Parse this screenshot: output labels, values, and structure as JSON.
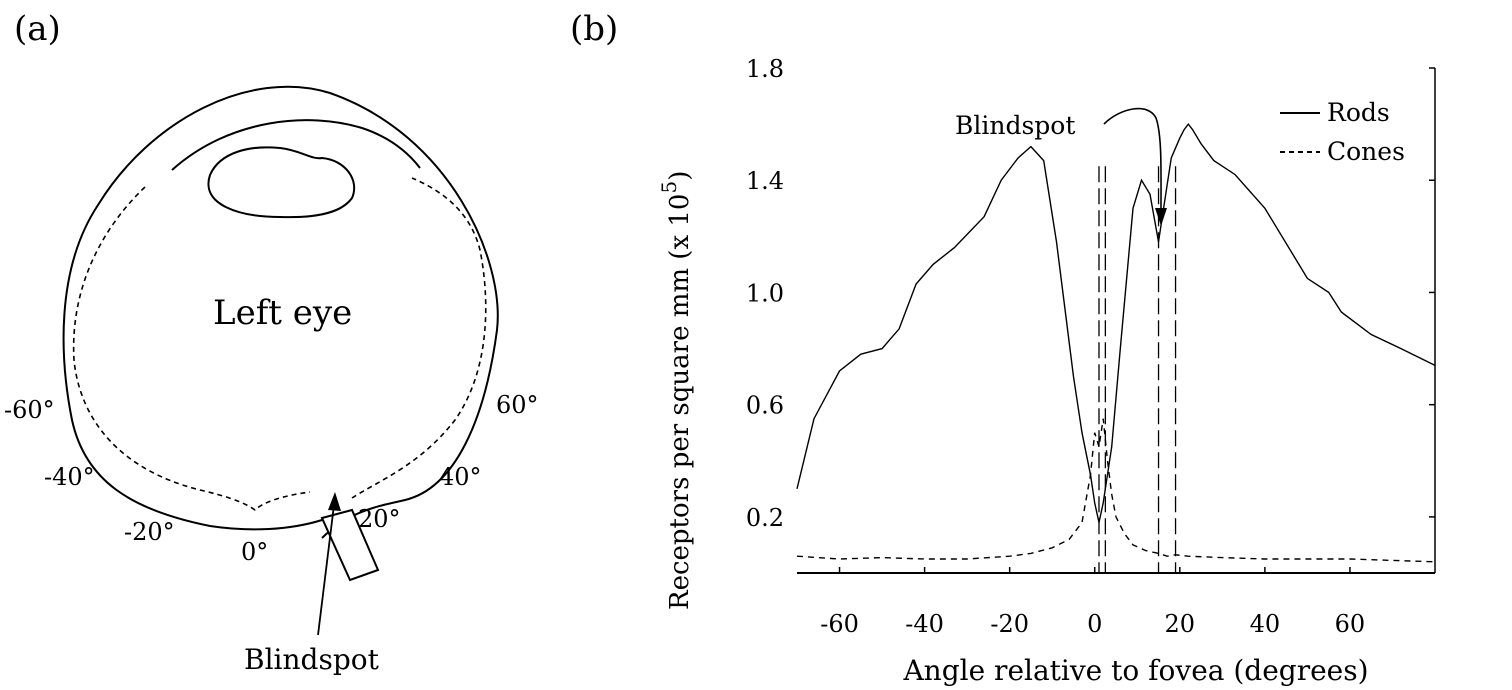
{
  "panel_a": {
    "label": "(a)",
    "eye_label": "Left eye",
    "blindspot_label": "Blindspot",
    "angle_labels": [
      "-60°",
      "-40°",
      "-20°",
      "0°",
      "20°",
      "40°",
      "60°"
    ]
  },
  "panel_b": {
    "label": "(b)",
    "blindspot_label": "Blindspot"
  },
  "chart_data": {
    "type": "line",
    "xlabel": "Angle relative to fovea (degrees)",
    "ylabel": "Receptors per square mm (x 10",
    "ylabel_sup": "5",
    "ylabel_close": ")",
    "xlim": [
      -70,
      80
    ],
    "ylim": [
      0,
      1.8
    ],
    "x_ticks": [
      -60,
      -40,
      -20,
      0,
      20,
      40,
      60
    ],
    "y_ticks": [
      0.2,
      0.6,
      1.0,
      1.4,
      1.8
    ],
    "x_tick_labels": [
      "-60",
      "-40",
      "-20",
      "0",
      "20",
      "40",
      "60"
    ],
    "y_tick_labels": [
      "0.2",
      "0.6",
      "1.0",
      "1.4",
      "1.8"
    ],
    "legend_position": "top-right",
    "series": [
      {
        "name": "Rods",
        "style": "solid",
        "x": [
          -70,
          -66,
          -60,
          -55,
          -50,
          -46,
          -42,
          -38,
          -33,
          -26,
          -22,
          -18,
          -15,
          -12,
          -9,
          -5,
          -3,
          -1,
          0,
          1,
          2,
          4,
          6,
          9,
          11,
          13,
          15,
          17,
          18,
          20,
          21,
          22,
          23,
          25,
          28,
          33,
          40,
          50,
          55,
          58,
          65,
          72,
          80
        ],
        "y": [
          0.3,
          0.55,
          0.72,
          0.78,
          0.8,
          0.87,
          1.03,
          1.1,
          1.16,
          1.27,
          1.4,
          1.48,
          1.52,
          1.47,
          1.18,
          0.7,
          0.5,
          0.35,
          0.25,
          0.18,
          0.25,
          0.45,
          0.8,
          1.3,
          1.4,
          1.35,
          1.18,
          1.38,
          1.48,
          1.55,
          1.58,
          1.6,
          1.58,
          1.53,
          1.47,
          1.42,
          1.3,
          1.05,
          1.0,
          0.93,
          0.85,
          0.8,
          0.74
        ]
      },
      {
        "name": "Cones",
        "style": "dashed",
        "x": [
          -70,
          -60,
          -50,
          -40,
          -30,
          -20,
          -15,
          -10,
          -6,
          -3,
          -1,
          0,
          1,
          2,
          3,
          4,
          5,
          7,
          9,
          12,
          15,
          17,
          19,
          22,
          30,
          40,
          50,
          55,
          60,
          70,
          80
        ],
        "y": [
          0.06,
          0.05,
          0.055,
          0.05,
          0.05,
          0.06,
          0.07,
          0.09,
          0.12,
          0.18,
          0.35,
          0.5,
          0.45,
          0.55,
          0.4,
          0.28,
          0.2,
          0.14,
          0.1,
          0.08,
          0.07,
          0.06,
          0.065,
          0.06,
          0.055,
          0.05,
          0.05,
          0.05,
          0.05,
          0.045,
          0.04
        ]
      }
    ]
  }
}
